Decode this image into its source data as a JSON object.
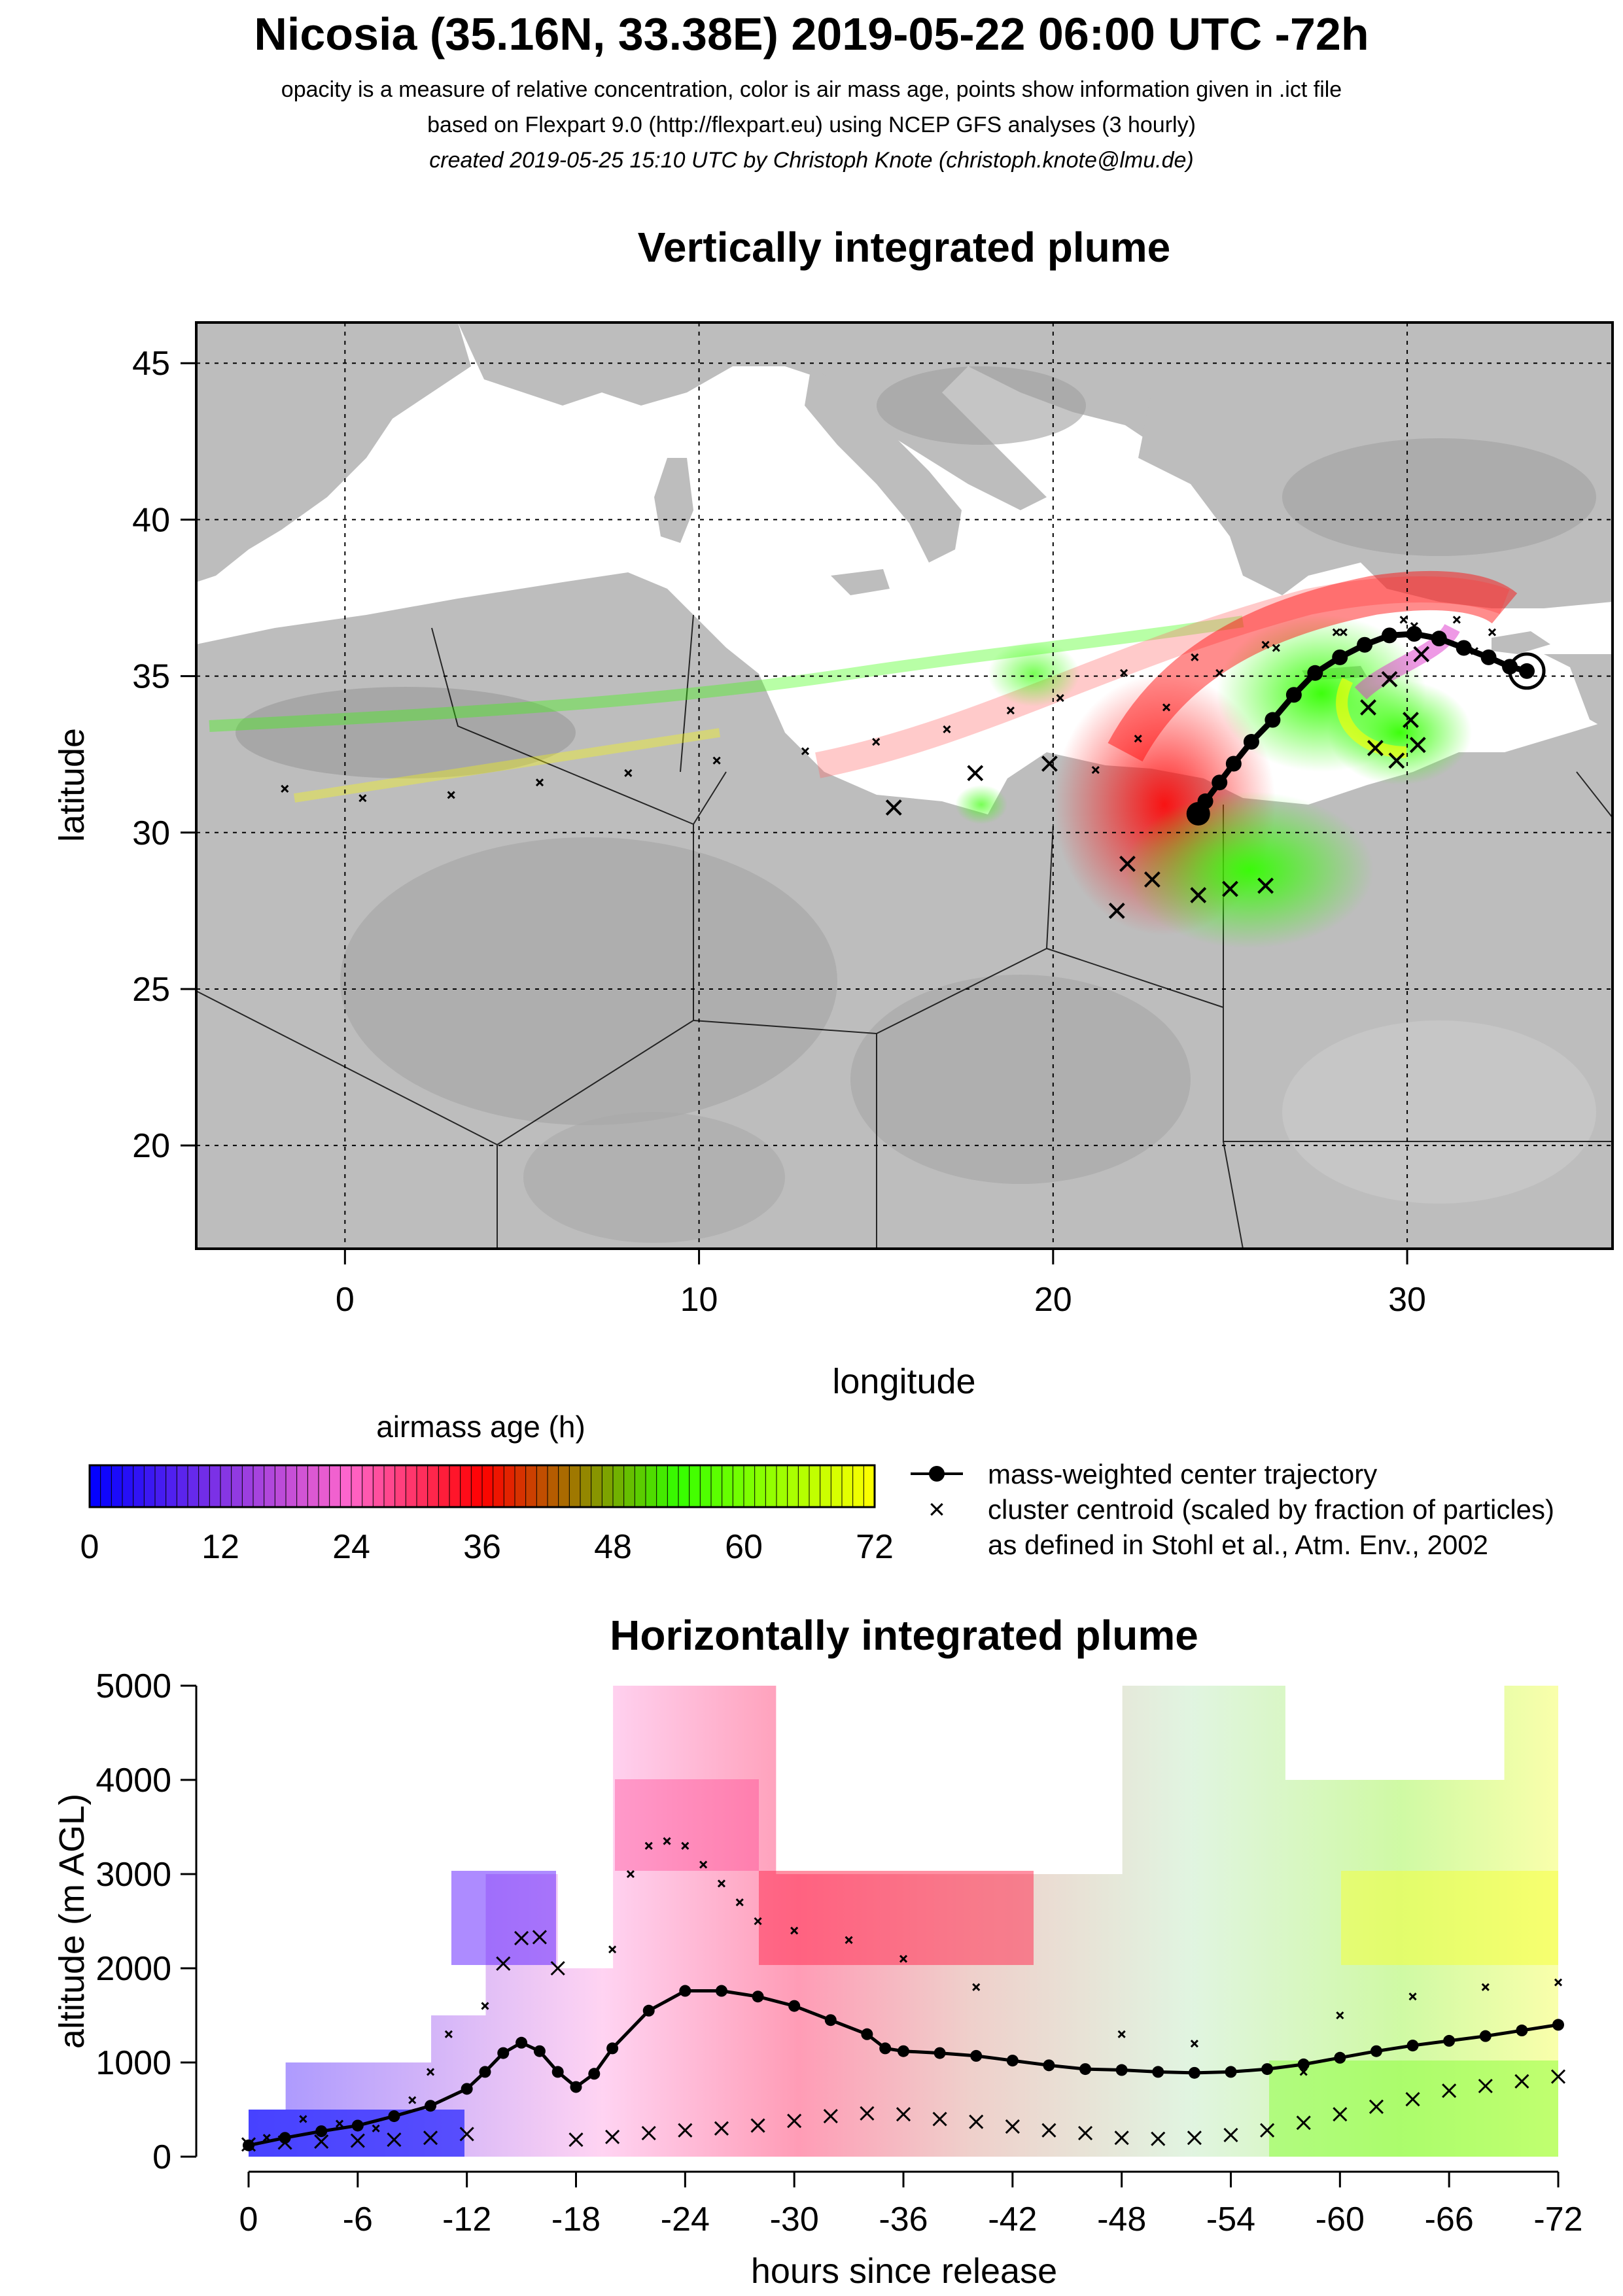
{
  "header": {
    "title": "Nicosia (35.16N, 33.38E) 2019-05-22 06:00 UTC -72h",
    "line1": "opacity is a measure of relative concentration, color is air mass age, points show information given in .ict file",
    "line2": "based on Flexpart 9.0 (http://flexpart.eu) using NCEP GFS analyses (3 hourly)",
    "line3": "created 2019-05-25 15:10 UTC by Christoph Knote (christoph.knote@lmu.de)"
  },
  "colors": {
    "map_land": "#bdbdbd",
    "map_sea": "#ffffff",
    "age_stops": [
      "#0000ff",
      "#ff66cc",
      "#ff0000",
      "#33ff00",
      "#ffff00"
    ]
  },
  "chart_data": [
    {
      "type": "scatter",
      "title": "Vertically integrated plume",
      "xlabel": "longitude",
      "ylabel": "latitude",
      "xlim": [
        -4.2,
        35.8
      ],
      "ylim": [
        16.7,
        46.3
      ],
      "xticks": [
        0,
        10,
        20,
        30
      ],
      "yticks": [
        20,
        25,
        30,
        35,
        40,
        45
      ],
      "grid": true,
      "release": {
        "lon": 33.38,
        "lat": 35.16
      },
      "series": [
        {
          "name": "mass-weighted center trajectory",
          "points": [
            [
              33.38,
              35.16
            ],
            [
              32.9,
              35.3
            ],
            [
              32.3,
              35.6
            ],
            [
              31.6,
              35.9
            ],
            [
              30.9,
              36.2
            ],
            [
              30.2,
              36.35
            ],
            [
              29.5,
              36.3
            ],
            [
              28.8,
              36.0
            ],
            [
              28.1,
              35.6
            ],
            [
              27.4,
              35.1
            ],
            [
              26.8,
              34.4
            ],
            [
              26.2,
              33.6
            ],
            [
              25.6,
              32.9
            ],
            [
              25.1,
              32.2
            ],
            [
              24.7,
              31.6
            ],
            [
              24.3,
              31.0
            ],
            [
              24.1,
              30.6
            ]
          ]
        },
        {
          "name": "cluster centroid",
          "points": [
            [
              -1.7,
              31.4
            ],
            [
              0.5,
              31.1
            ],
            [
              3.0,
              31.2
            ],
            [
              5.5,
              31.6
            ],
            [
              8.0,
              31.9
            ],
            [
              10.5,
              32.3
            ],
            [
              13.0,
              32.6
            ],
            [
              15.0,
              32.9
            ],
            [
              17.0,
              33.3
            ],
            [
              18.8,
              33.9
            ],
            [
              20.2,
              34.3
            ],
            [
              22.0,
              35.1
            ],
            [
              24.0,
              35.6
            ],
            [
              26.0,
              36.0
            ],
            [
              28.0,
              36.4
            ],
            [
              29.9,
              36.8
            ],
            [
              31.4,
              36.8
            ],
            [
              32.4,
              36.4
            ],
            [
              21.2,
              32.0
            ],
            [
              22.4,
              33.0
            ],
            [
              23.2,
              34.0
            ],
            [
              24.7,
              35.1
            ],
            [
              26.3,
              35.9
            ],
            [
              28.2,
              36.4
            ],
            [
              30.2,
              36.6
            ],
            [
              31.9,
              35.8
            ],
            [
              15.5,
              30.8
            ],
            [
              17.8,
              31.9
            ],
            [
              19.9,
              32.2
            ],
            [
              26.0,
              28.3
            ],
            [
              25.0,
              28.2
            ],
            [
              24.1,
              28.0
            ],
            [
              22.8,
              28.5
            ],
            [
              21.8,
              27.5
            ],
            [
              22.1,
              29.0
            ],
            [
              30.4,
              35.7
            ],
            [
              29.5,
              34.9
            ],
            [
              28.9,
              34.0
            ],
            [
              29.1,
              32.7
            ],
            [
              29.7,
              32.3
            ],
            [
              30.3,
              32.8
            ],
            [
              30.1,
              33.6
            ]
          ]
        }
      ],
      "legend": {
        "title": "airmass age (h)",
        "ticks": [
          0,
          12,
          24,
          36,
          48,
          60,
          72
        ],
        "entries": [
          {
            "label": "mass-weighted center trajectory"
          },
          {
            "label": "cluster centroid (scaled by fraction of particles)"
          },
          {
            "label": "as defined in Stohl et al., Atm. Env., 2002"
          }
        ]
      }
    },
    {
      "type": "line",
      "title": "Horizontally integrated plume",
      "xlabel": "hours since release",
      "ylabel": "altitude (m AGL)",
      "xlim": [
        1.6,
        -73.4
      ],
      "ylim": [
        0,
        5000
      ],
      "xticks": [
        0,
        -6,
        -12,
        -18,
        -24,
        -30,
        -36,
        -42,
        -48,
        -54,
        -60,
        -66,
        -72
      ],
      "yticks": [
        0,
        1000,
        2000,
        3000,
        4000,
        5000
      ],
      "series": [
        {
          "name": "mass-weighted center trajectory",
          "x": [
            0,
            -2,
            -4,
            -6,
            -8,
            -10,
            -12,
            -13,
            -14,
            -15,
            -16,
            -17,
            -18,
            -19,
            -20,
            -22,
            -24,
            -26,
            -28,
            -30,
            -32,
            -34,
            -35,
            -36,
            -38,
            -40,
            -42,
            -44,
            -46,
            -48,
            -50,
            -52,
            -54,
            -56,
            -58,
            -60,
            -62,
            -64,
            -66,
            -68,
            -70,
            -72
          ],
          "y": [
            120,
            200,
            270,
            330,
            430,
            540,
            720,
            900,
            1100,
            1210,
            1120,
            900,
            740,
            880,
            1150,
            1550,
            1760,
            1760,
            1700,
            1600,
            1450,
            1300,
            1150,
            1120,
            1100,
            1070,
            1020,
            970,
            930,
            920,
            900,
            890,
            900,
            930,
            980,
            1050,
            1120,
            1180,
            1230,
            1280,
            1340,
            1400
          ]
        },
        {
          "name": "cluster centroid",
          "x": [
            0,
            -2,
            -4,
            -6,
            -8,
            -10,
            -12,
            -14,
            -15,
            -16,
            -17,
            -18,
            -20,
            -22,
            -24,
            -26,
            -28,
            -30,
            -32,
            -34,
            -36,
            -38,
            -40,
            -42,
            -44,
            -46,
            -48,
            -50,
            -52,
            -54,
            -56,
            -58,
            -60,
            -62,
            -64,
            -66,
            -68,
            -70,
            -72,
            -1,
            -3,
            -5,
            -7,
            -9,
            -10,
            -11,
            -13,
            -20,
            -21,
            -22,
            -23,
            -24,
            -25,
            -26,
            -27,
            -28,
            -30,
            -33,
            -36,
            -40,
            -48,
            -52,
            -58,
            -60,
            -64,
            -68,
            -72
          ],
          "y": [
            130,
            150,
            160,
            170,
            180,
            200,
            240,
            2050,
            2320,
            2330,
            2000,
            180,
            210,
            250,
            280,
            300,
            330,
            380,
            430,
            460,
            450,
            400,
            370,
            320,
            280,
            250,
            200,
            190,
            200,
            230,
            280,
            360,
            450,
            530,
            610,
            700,
            750,
            800,
            850,
            200,
            400,
            350,
            300,
            600,
            900,
            1300,
            1600,
            2200,
            3000,
            3300,
            3350,
            3300,
            3100,
            2900,
            2700,
            2500,
            2400,
            2300,
            2100,
            1800,
            1300,
            1200,
            900,
            1500,
            1700,
            1800,
            1850
          ]
        }
      ],
      "age_band_tops": [
        [
          0,
          500
        ],
        [
          2,
          1000
        ],
        [
          4,
          1000
        ],
        [
          6,
          1000
        ],
        [
          8,
          1000
        ],
        [
          10,
          1500
        ],
        [
          12,
          1500
        ],
        [
          13,
          3000
        ],
        [
          16,
          3000
        ],
        [
          17,
          2000
        ],
        [
          20,
          5000
        ],
        [
          24,
          5000
        ],
        [
          28,
          5000
        ],
        [
          29,
          3000
        ],
        [
          36,
          3000
        ],
        [
          42,
          3000
        ],
        [
          47,
          3000
        ],
        [
          48,
          5000
        ],
        [
          56,
          5000
        ],
        [
          57,
          4000
        ],
        [
          68,
          4000
        ],
        [
          69,
          5000
        ],
        [
          72,
          5000
        ]
      ]
    }
  ]
}
